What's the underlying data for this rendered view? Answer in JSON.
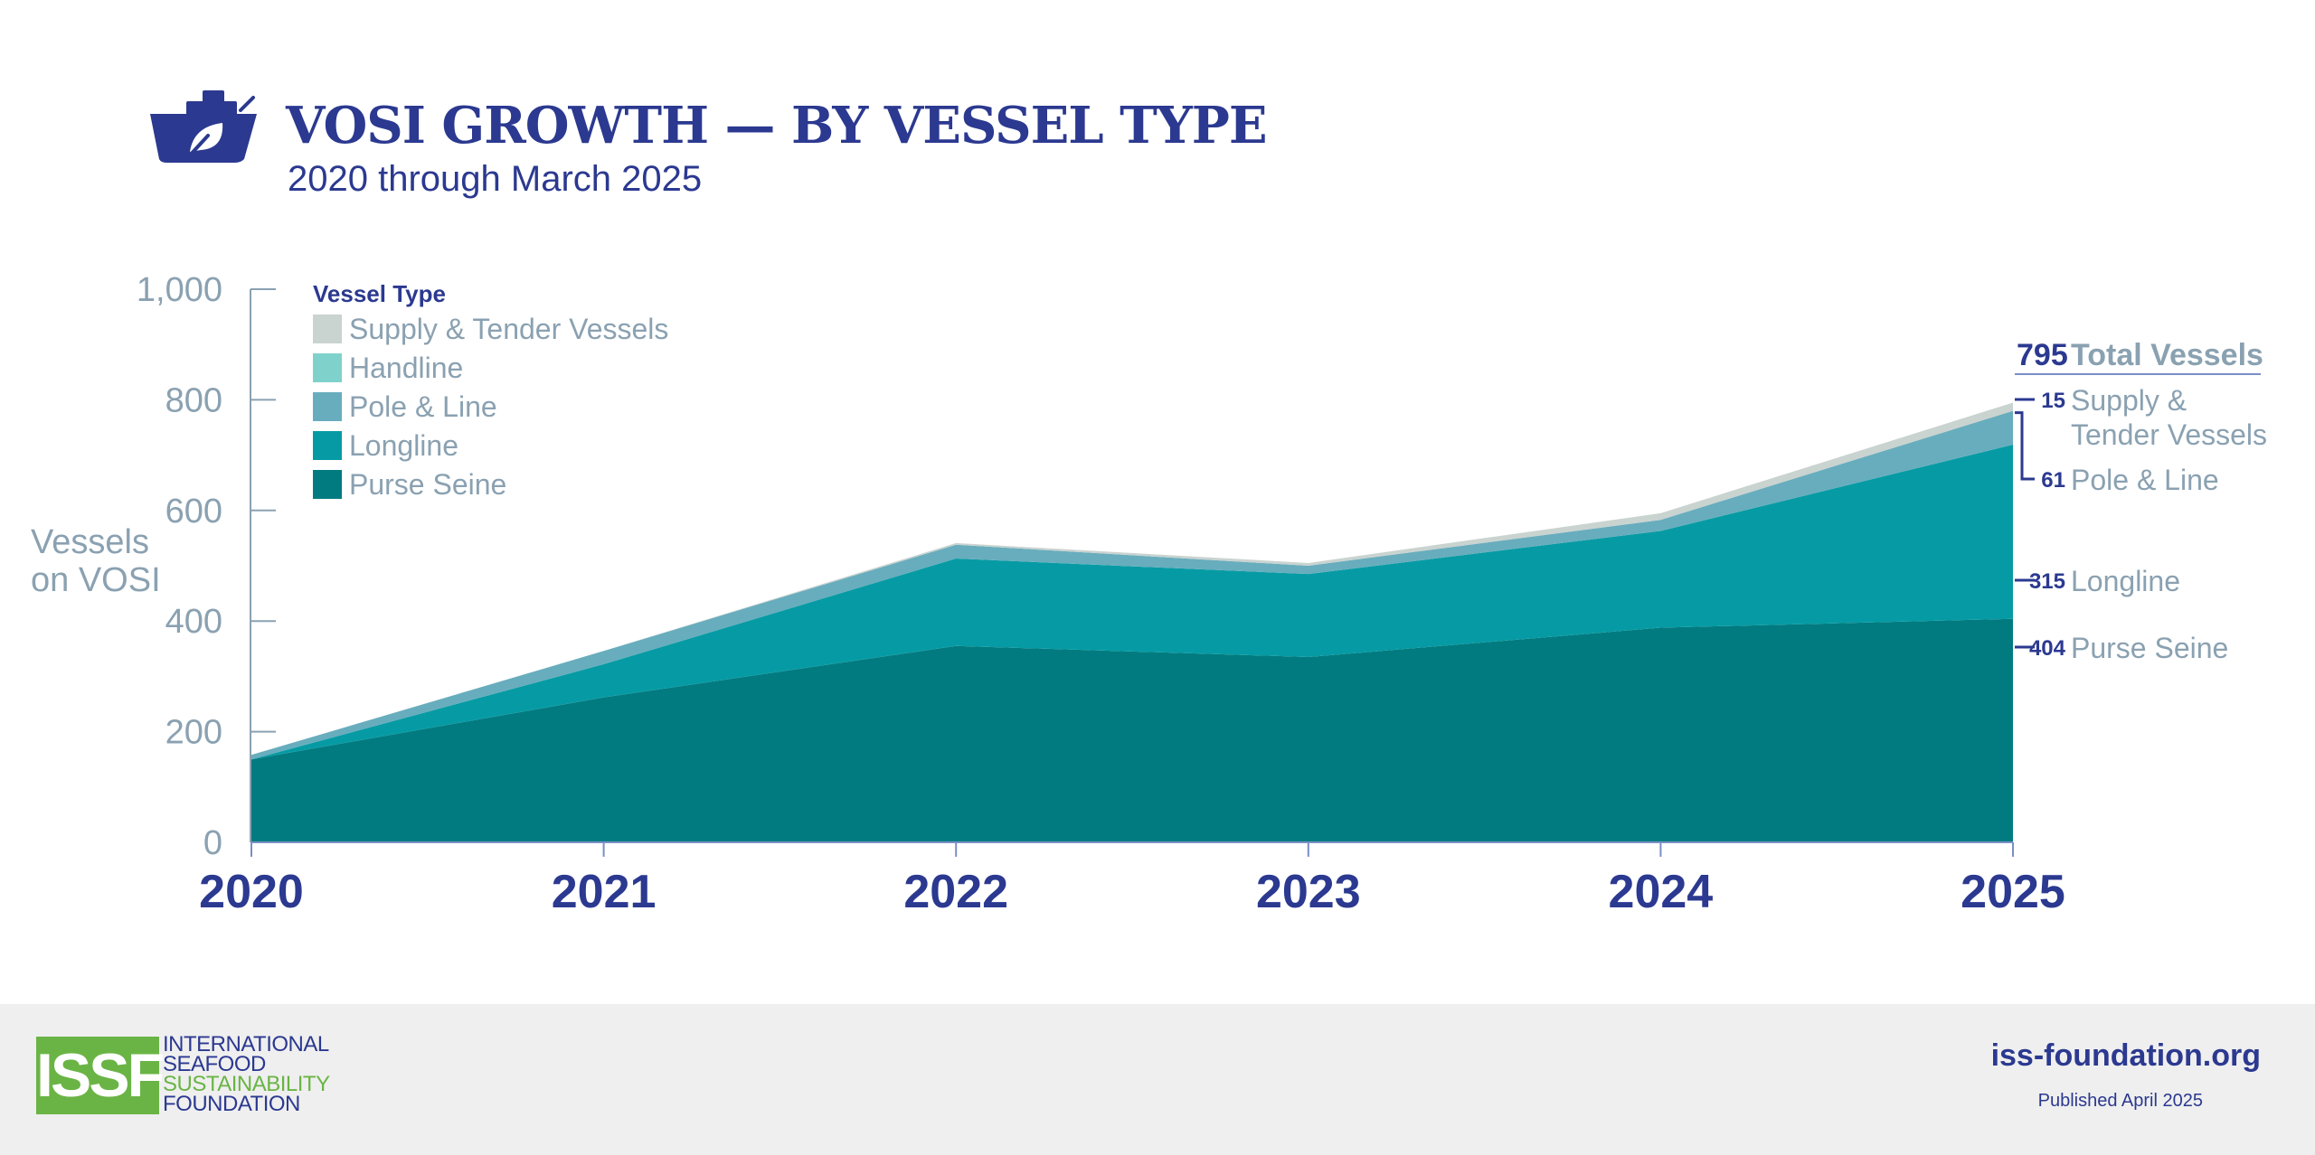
{
  "header": {
    "title": "VOSI GROWTH — BY VESSEL TYPE",
    "subtitle": "2020 through March 2025",
    "icon": "ship-leaf-icon"
  },
  "chart_data": {
    "type": "area",
    "stacked": true,
    "x": [
      "2020",
      "2021",
      "2022",
      "2023",
      "2024",
      "2025"
    ],
    "ylim": [
      0,
      1000
    ],
    "yticks": [
      0,
      200,
      400,
      600,
      800,
      1000
    ],
    "ylabel": [
      "Vessels",
      "on VOSI"
    ],
    "legend_title": "Vessel Type",
    "legend_position": "top-left",
    "grid": false,
    "series": [
      {
        "name": "Purse Seine",
        "color": "#027b80",
        "values": [
          150,
          262,
          355,
          335,
          388,
          404
        ]
      },
      {
        "name": "Longline",
        "color": "#069ba4",
        "values": [
          0,
          60,
          158,
          150,
          175,
          315
        ]
      },
      {
        "name": "Pole & Line",
        "color": "#68adbd",
        "values": [
          8,
          24,
          25,
          15,
          20,
          61
        ]
      },
      {
        "name": "Handline",
        "color": "#7fd2cb",
        "values": [
          0,
          0,
          0,
          0,
          0,
          0
        ]
      },
      {
        "name": "Supply & Tender Vessels",
        "color": "#c9d3d0",
        "values": [
          0,
          0,
          3,
          5,
          12,
          15
        ]
      }
    ],
    "legend_order": [
      "Supply & Tender Vessels",
      "Handline",
      "Pole & Line",
      "Longline",
      "Purse Seine"
    ],
    "total": {
      "value": "795",
      "label": "Total Vessels"
    },
    "end_labels": [
      {
        "value": "15",
        "lines": [
          "Supply &",
          "Tender Vessels"
        ]
      },
      {
        "value": "61",
        "lines": [
          "Pole & Line"
        ]
      },
      {
        "value": "315",
        "lines": [
          "Longline"
        ]
      },
      {
        "value": "404",
        "lines": [
          "Purse Seine"
        ]
      }
    ]
  },
  "footer": {
    "logo_mark": "ISSF",
    "logo_lines": [
      "INTERNATIONAL",
      "SEAFOOD",
      "SUSTAINABILITY",
      "FOUNDATION"
    ],
    "url": "iss-foundation.org",
    "published": "Published April 2025"
  },
  "colors": {
    "navy": "#2b3990",
    "axis_gray": "#8aa1b1",
    "logo_green": "#6ab445"
  }
}
